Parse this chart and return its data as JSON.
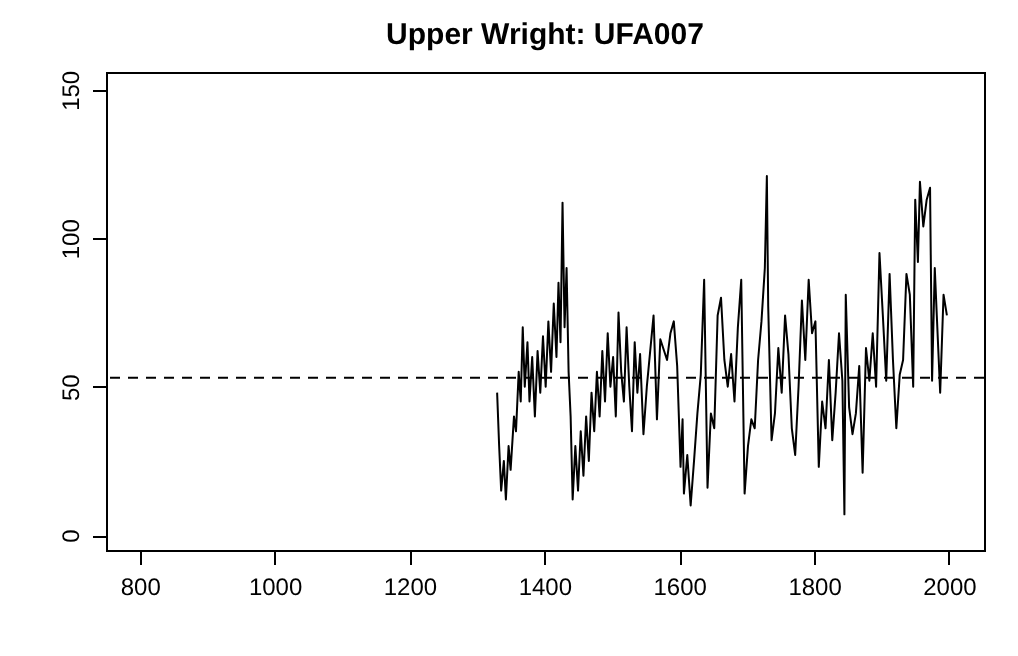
{
  "chart_data": {
    "type": "line",
    "title": "Upper Wright:  UFA007",
    "x": [
      1330,
      1333,
      1336,
      1340,
      1343,
      1347,
      1350,
      1355,
      1358,
      1362,
      1365,
      1368,
      1371,
      1375,
      1378,
      1382,
      1386,
      1390,
      1394,
      1398,
      1402,
      1406,
      1410,
      1414,
      1418,
      1421,
      1424,
      1427,
      1430,
      1433,
      1436,
      1439,
      1442,
      1446,
      1450,
      1454,
      1458,
      1462,
      1466,
      1470,
      1474,
      1478,
      1482,
      1486,
      1490,
      1494,
      1498,
      1502,
      1506,
      1510,
      1514,
      1518,
      1522,
      1526,
      1530,
      1534,
      1538,
      1542,
      1547,
      1552,
      1562,
      1567,
      1572,
      1582,
      1587,
      1592,
      1597,
      1602,
      1605,
      1607,
      1612,
      1617,
      1622,
      1627,
      1632,
      1637,
      1642,
      1647,
      1652,
      1657,
      1662,
      1667,
      1672,
      1677,
      1682,
      1687,
      1692,
      1697,
      1702,
      1707,
      1712,
      1717,
      1722,
      1727,
      1730,
      1732,
      1737,
      1742,
      1747,
      1752,
      1757,
      1762,
      1767,
      1772,
      1777,
      1782,
      1787,
      1792,
      1797,
      1802,
      1807,
      1812,
      1817,
      1822,
      1827,
      1832,
      1837,
      1842,
      1845,
      1847,
      1852,
      1857,
      1862,
      1867,
      1872,
      1877,
      1882,
      1887,
      1892,
      1897,
      1902,
      1907,
      1912,
      1917,
      1922,
      1927,
      1932,
      1937,
      1942,
      1947,
      1950,
      1954,
      1957,
      1962,
      1967,
      1972,
      1975,
      1979,
      1982,
      1987,
      1992,
      1997
    ],
    "series": [
      {
        "color": "#000000",
        "values": [
          48,
          30,
          15,
          25,
          12,
          30,
          22,
          40,
          35,
          55,
          45,
          70,
          50,
          65,
          45,
          60,
          40,
          62,
          48,
          67,
          50,
          72,
          55,
          78,
          60,
          85,
          65,
          112,
          70,
          90,
          55,
          40,
          12,
          30,
          15,
          35,
          20,
          40,
          25,
          48,
          35,
          55,
          40,
          62,
          45,
          68,
          50,
          60,
          40,
          75,
          55,
          45,
          70,
          50,
          35,
          65,
          48,
          61,
          34,
          50,
          74,
          39,
          66,
          59,
          68,
          72,
          57,
          23,
          39,
          14,
          27,
          10,
          25,
          41,
          54,
          86,
          16,
          41,
          36,
          74,
          80,
          59,
          50,
          61,
          45,
          70,
          86,
          14,
          30,
          39,
          36,
          59,
          72,
          90,
          121,
          77,
          32,
          41,
          63,
          48,
          74,
          61,
          36,
          27,
          50,
          79,
          59,
          86,
          68,
          72,
          23,
          45,
          36,
          59,
          32,
          48,
          68,
          52,
          7,
          81,
          43,
          34,
          41,
          57,
          21,
          63,
          52,
          68,
          50,
          95,
          74,
          52,
          88,
          59,
          36,
          54,
          59,
          88,
          81,
          50,
          113,
          92,
          119,
          104,
          113,
          117,
          52,
          90,
          74,
          48,
          81,
          74
        ]
      }
    ],
    "xlim": [
      750,
      2052
    ],
    "ylim": [
      -5,
      156
    ],
    "xticks": [
      800,
      1000,
      1200,
      1400,
      1600,
      1800,
      2000
    ],
    "yticks": [
      0,
      50,
      100,
      150
    ],
    "ref_lines": [
      {
        "axis": "y",
        "value": 53,
        "line_style": "dashed",
        "color": "#000000"
      }
    ],
    "grid": false,
    "line_style": "solid"
  }
}
